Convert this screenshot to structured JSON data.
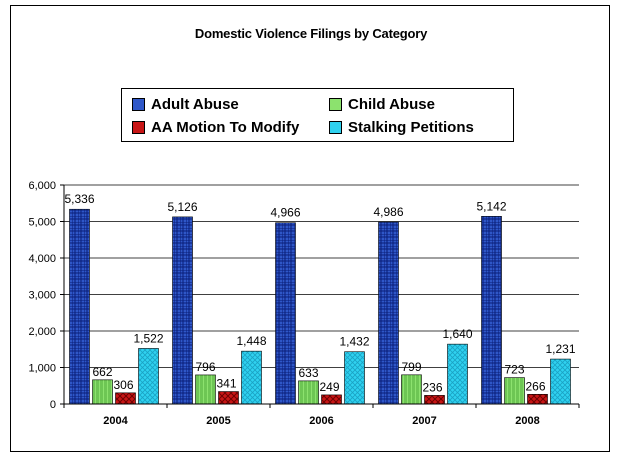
{
  "chart_data": {
    "type": "bar",
    "title": "Domestic Violence Filings by Category",
    "categories": [
      "2004",
      "2005",
      "2006",
      "2007",
      "2008"
    ],
    "series": [
      {
        "name": "Adult Abuse",
        "values": [
          5336,
          5126,
          4966,
          4986,
          5142
        ],
        "labels": [
          "5,336",
          "5,126",
          "4,966",
          "4,986",
          "5,142"
        ],
        "color": "#2f57c8"
      },
      {
        "name": "Child Abuse",
        "values": [
          662,
          796,
          633,
          799,
          723
        ],
        "labels": [
          "662",
          "796",
          "633",
          "799",
          "723"
        ],
        "color": "#8ce26e"
      },
      {
        "name": "AA Motion To Modify",
        "values": [
          306,
          341,
          249,
          236,
          266
        ],
        "labels": [
          "306",
          "341",
          "249",
          "236",
          "266"
        ],
        "color": "#c81616"
      },
      {
        "name": "Stalking Petitions",
        "values": [
          1522,
          1448,
          1432,
          1640,
          1231
        ],
        "labels": [
          "1,522",
          "1,448",
          "1,432",
          "1,640",
          "1,231"
        ],
        "color": "#2fd2f0"
      }
    ],
    "ylim": [
      0,
      6000
    ],
    "yticks": [
      0,
      1000,
      2000,
      3000,
      4000,
      5000,
      6000
    ],
    "ytick_labels": [
      "0",
      "1,000",
      "2,000",
      "3,000",
      "4,000",
      "5,000",
      "6,000"
    ],
    "gridlines": true,
    "legend_position": "top"
  }
}
